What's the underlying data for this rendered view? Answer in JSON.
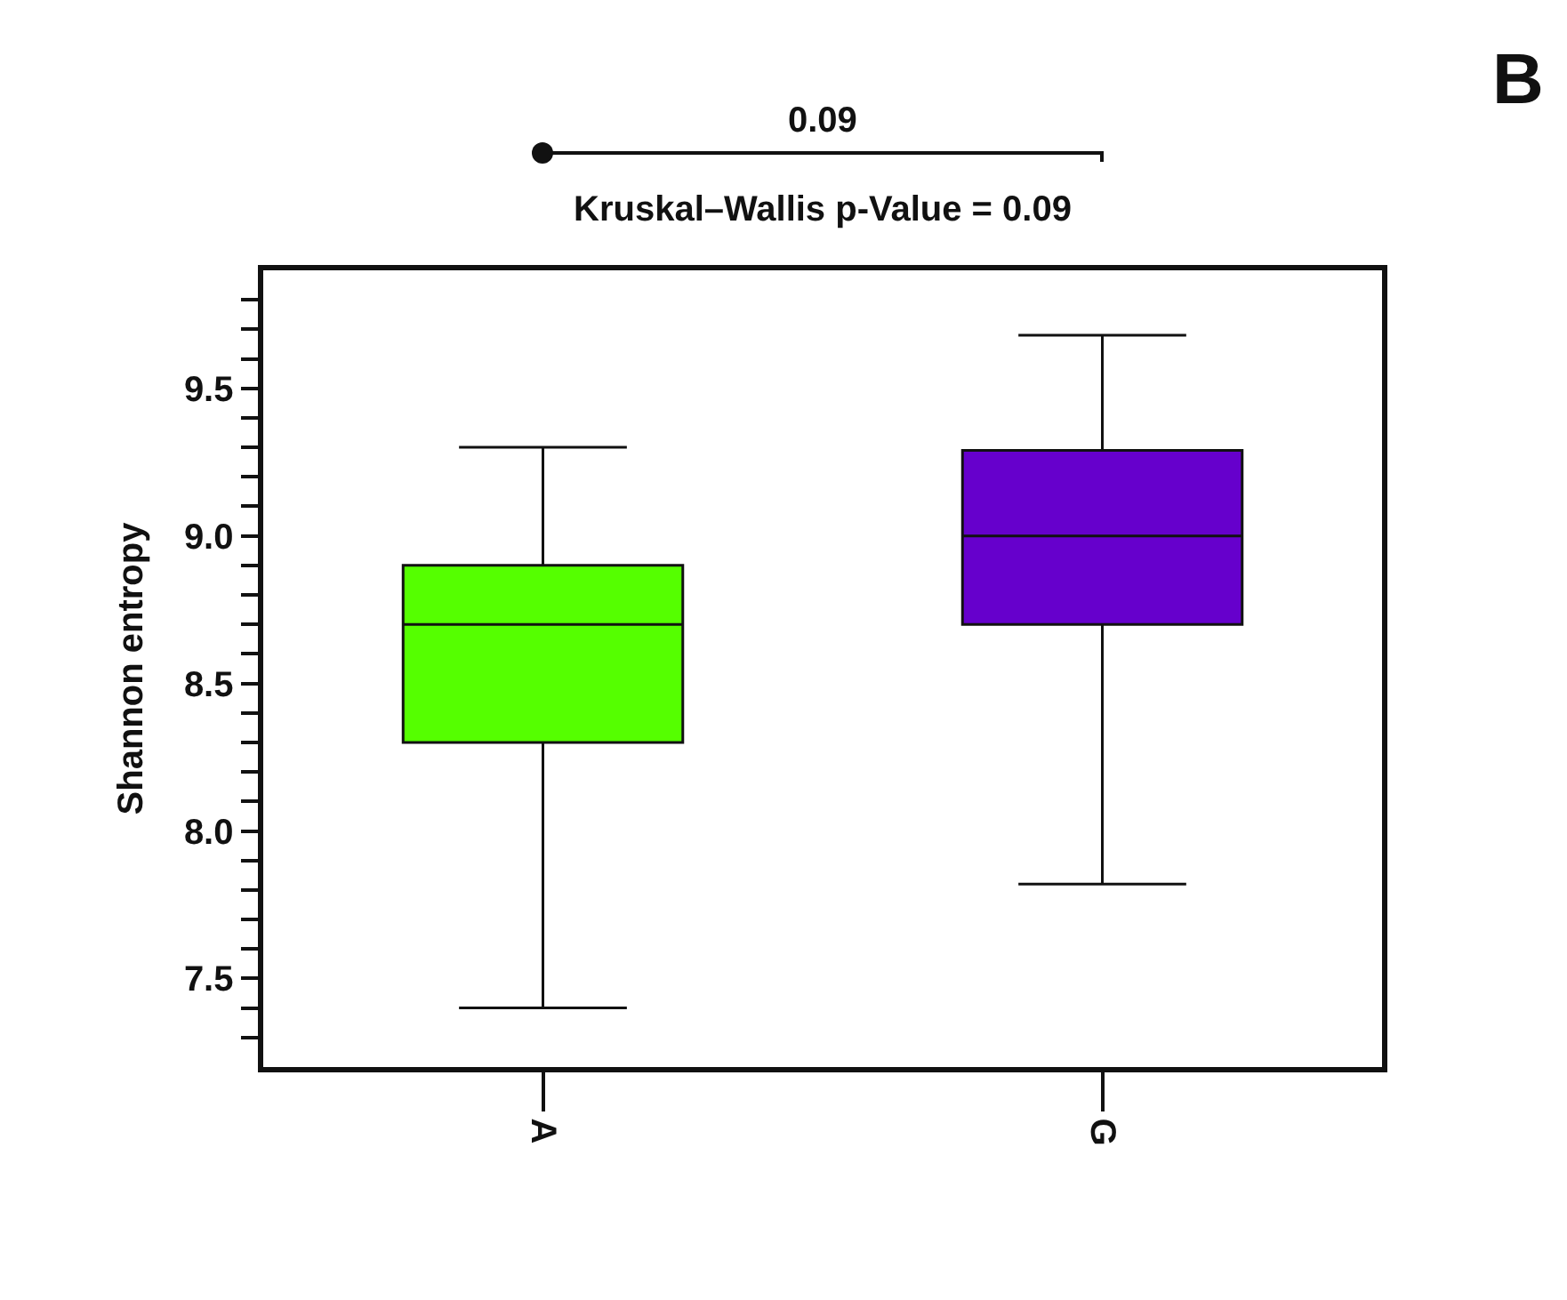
{
  "chart_data": {
    "type": "box",
    "title": "Kruskal–Wallis p-Value = 0.09",
    "ylabel": "Shannon entropy",
    "categories": [
      "A",
      "G"
    ],
    "colors": [
      "#55ff00",
      "#6600cc"
    ],
    "boxes": [
      {
        "low": 7.4,
        "q1": 8.3,
        "median": 8.7,
        "q3": 8.9,
        "high": 9.3
      },
      {
        "low": 7.82,
        "q1": 8.7,
        "median": 9.0,
        "q3": 9.29,
        "high": 9.68
      }
    ],
    "annotations": [
      "0.09",
      "B"
    ],
    "ylim": [
      7.2,
      9.9
    ],
    "yticks": [
      {
        "value": 7.3,
        "label": null
      },
      {
        "value": 7.4,
        "label": null
      },
      7.5,
      {
        "value": 7.6,
        "label": null
      },
      {
        "value": 7.7,
        "label": null
      },
      {
        "value": 7.8,
        "label": null
      },
      {
        "value": 7.9,
        "label": null
      },
      {
        "value": 8.0,
        "label": "8.0"
      },
      {
        "value": 8.1,
        "label": null
      },
      {
        "value": 8.2,
        "label": null
      },
      {
        "value": 8.3,
        "label": null
      },
      {
        "value": 8.4,
        "label": null
      },
      8.5,
      {
        "value": 8.6,
        "label": null
      },
      {
        "value": 8.7,
        "label": null
      },
      {
        "value": 8.8,
        "label": null
      },
      {
        "value": 8.9,
        "label": null
      },
      {
        "value": 9.0,
        "label": "9.0"
      },
      {
        "value": 9.1,
        "label": null
      },
      {
        "value": 9.2,
        "label": null
      },
      {
        "value": 9.3,
        "label": null
      },
      {
        "value": 9.4,
        "label": null
      },
      9.5,
      {
        "value": 9.6,
        "label": null
      },
      {
        "value": 9.7,
        "label": null
      },
      {
        "value": 9.8,
        "label": null
      }
    ],
    "grid": false
  }
}
